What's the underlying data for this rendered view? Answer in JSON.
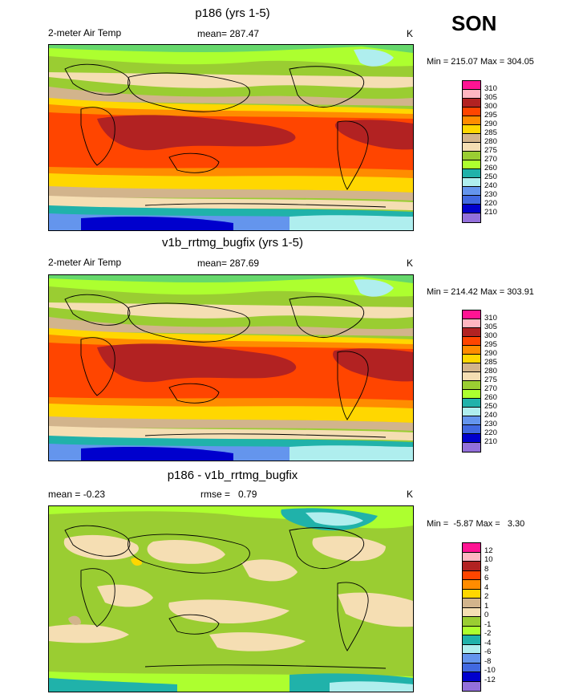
{
  "season": "SON",
  "panels": [
    {
      "title": "p186 (yrs 1-5)",
      "left_label": "2-meter Air Temp",
      "center_label": "mean= 287.47",
      "units": "K",
      "minmax": "Min = 215.07 Max = 304.05",
      "legend_labels": [
        "310",
        "305",
        "300",
        "295",
        "290",
        "285",
        "280",
        "275",
        "270",
        "260",
        "250",
        "240",
        "230",
        "220",
        "210"
      ],
      "legend_colors": [
        "#ff1493",
        "#ffb6c1",
        "#b22222",
        "#ff4500",
        "#ff8c00",
        "#ffd700",
        "#d2b48c",
        "#f5deb3",
        "#9acd32",
        "#adff2f",
        "#20b2aa",
        "#afeeee",
        "#6495ed",
        "#4169e1",
        "#0000cd",
        "#9370db"
      ]
    },
    {
      "title": "v1b_rrtmg_bugfix (yrs 1-5)",
      "left_label": "2-meter Air Temp",
      "center_label": "mean= 287.69",
      "units": "K",
      "minmax": "Min = 214.42 Max = 303.91",
      "legend_labels": [
        "310",
        "305",
        "300",
        "295",
        "290",
        "285",
        "280",
        "275",
        "270",
        "260",
        "250",
        "240",
        "230",
        "220",
        "210"
      ],
      "legend_colors": [
        "#ff1493",
        "#ffb6c1",
        "#b22222",
        "#ff4500",
        "#ff8c00",
        "#ffd700",
        "#d2b48c",
        "#f5deb3",
        "#9acd32",
        "#adff2f",
        "#20b2aa",
        "#afeeee",
        "#6495ed",
        "#4169e1",
        "#0000cd",
        "#9370db"
      ]
    },
    {
      "title": "p186 - v1b_rrtmg_bugfix",
      "left_label": "mean =  -0.23",
      "center_label": "rmse =   0.79",
      "units": "K",
      "minmax": "Min =  -5.87 Max =   3.30",
      "legend_labels": [
        "12",
        "10",
        "8",
        "6",
        "4",
        "2",
        "1",
        "0",
        "-1",
        "-2",
        "-4",
        "-6",
        "-8",
        "-10",
        "-12"
      ],
      "legend_colors": [
        "#ff1493",
        "#ffb6c1",
        "#b22222",
        "#ff4500",
        "#ff8c00",
        "#ffd700",
        "#d2b48c",
        "#f5deb3",
        "#9acd32",
        "#adff2f",
        "#20b2aa",
        "#afeeee",
        "#6495ed",
        "#4169e1",
        "#0000cd",
        "#9370db"
      ]
    }
  ]
}
